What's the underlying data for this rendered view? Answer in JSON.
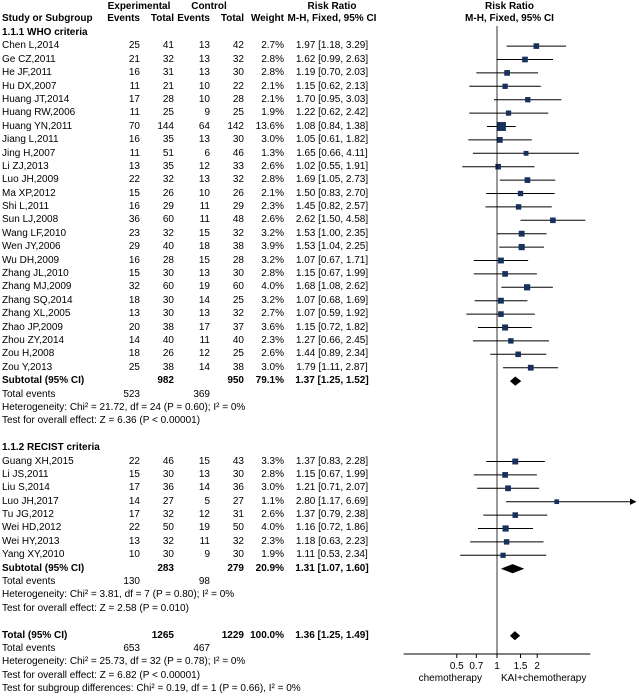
{
  "table": {
    "headers": {
      "study": "Study or Subgroup",
      "experimental": "Experimental",
      "control": "Control",
      "events": "Events",
      "total": "Total",
      "weight": "Weight",
      "risk_ratio": "Risk Ratio",
      "mh_fixed": "M-H, Fixed, 95% CI"
    }
  },
  "chart_data": {
    "type": "forest",
    "effect_measure": "Risk Ratio",
    "method": "M-H, Fixed, 95% CI",
    "axis": {
      "scale": "log",
      "ticks": [
        0.5,
        0.7,
        1,
        1.5,
        2
      ],
      "xmin": 0.2,
      "xmax": 5,
      "left_label": "chemotherapy",
      "right_label": "KAI+chemotherapy"
    },
    "colors": {
      "marker": "#16325c",
      "ci_line": "#000000",
      "diamond": "#000000",
      "axis": "#000000"
    },
    "rows": [
      {
        "t": "section",
        "label": "1.1.1 WHO criteria"
      },
      {
        "t": "study",
        "study": "Chen L,2014",
        "e_ev": "25",
        "e_n": "41",
        "c_ev": "13",
        "c_n": "42",
        "w": "2.7%",
        "ci": "1.97 [1.18, 3.29]",
        "rr": 1.97,
        "lo": 1.18,
        "hi": 3.29,
        "wt": 2.7
      },
      {
        "t": "study",
        "study": "Ge CZ,2011",
        "e_ev": "21",
        "e_n": "32",
        "c_ev": "13",
        "c_n": "32",
        "w": "2.8%",
        "ci": "1.62 [0.99, 2.63]",
        "rr": 1.62,
        "lo": 0.99,
        "hi": 2.63,
        "wt": 2.8
      },
      {
        "t": "study",
        "study": "He JF,2011",
        "e_ev": "16",
        "e_n": "31",
        "c_ev": "13",
        "c_n": "30",
        "w": "2.8%",
        "ci": "1.19 [0.70, 2.03]",
        "rr": 1.19,
        "lo": 0.7,
        "hi": 2.03,
        "wt": 2.8
      },
      {
        "t": "study",
        "study": "Hu DX,2007",
        "e_ev": "11",
        "e_n": "21",
        "c_ev": "10",
        "c_n": "22",
        "w": "2.1%",
        "ci": "1.15 [0.62, 2.13]",
        "rr": 1.15,
        "lo": 0.62,
        "hi": 2.13,
        "wt": 2.1
      },
      {
        "t": "study",
        "study": "Huang JT,2014",
        "e_ev": "17",
        "e_n": "28",
        "c_ev": "10",
        "c_n": "28",
        "w": "2.1%",
        "ci": "1.70 [0.95, 3.03]",
        "rr": 1.7,
        "lo": 0.95,
        "hi": 3.03,
        "wt": 2.1
      },
      {
        "t": "study",
        "study": "Huang RW,2006",
        "e_ev": "11",
        "e_n": "25",
        "c_ev": "9",
        "c_n": "25",
        "w": "1.9%",
        "ci": "1.22 [0.62, 2.42]",
        "rr": 1.22,
        "lo": 0.62,
        "hi": 2.42,
        "wt": 1.9
      },
      {
        "t": "study",
        "study": "Huang YN,2011",
        "e_ev": "70",
        "e_n": "144",
        "c_ev": "64",
        "c_n": "142",
        "w": "13.6%",
        "ci": "1.08 [0.84, 1.38]",
        "rr": 1.08,
        "lo": 0.84,
        "hi": 1.38,
        "wt": 13.6
      },
      {
        "t": "study",
        "study": "Jiang L,2011",
        "e_ev": "16",
        "e_n": "35",
        "c_ev": "13",
        "c_n": "30",
        "w": "3.0%",
        "ci": "1.05 [0.61, 1.82]",
        "rr": 1.05,
        "lo": 0.61,
        "hi": 1.82,
        "wt": 3.0
      },
      {
        "t": "study",
        "study": "Jing H,2007",
        "e_ev": "11",
        "e_n": "51",
        "c_ev": "6",
        "c_n": "46",
        "w": "1.3%",
        "ci": "1.65 [0.66, 4.11]",
        "rr": 1.65,
        "lo": 0.66,
        "hi": 4.11,
        "wt": 1.3
      },
      {
        "t": "study",
        "study": "Li ZJ,2013",
        "e_ev": "13",
        "e_n": "35",
        "c_ev": "12",
        "c_n": "33",
        "w": "2.6%",
        "ci": "1.02 [0.55, 1.91]",
        "rr": 1.02,
        "lo": 0.55,
        "hi": 1.91,
        "wt": 2.6
      },
      {
        "t": "study",
        "study": "Luo JH,2009",
        "e_ev": "22",
        "e_n": "32",
        "c_ev": "13",
        "c_n": "32",
        "w": "2.8%",
        "ci": "1.69 [1.05, 2.73]",
        "rr": 1.69,
        "lo": 1.05,
        "hi": 2.73,
        "wt": 2.8
      },
      {
        "t": "study",
        "study": "Ma XP,2012",
        "e_ev": "15",
        "e_n": "26",
        "c_ev": "10",
        "c_n": "26",
        "w": "2.1%",
        "ci": "1.50 [0.83, 2.70]",
        "rr": 1.5,
        "lo": 0.83,
        "hi": 2.7,
        "wt": 2.1
      },
      {
        "t": "study",
        "study": "Shi L,2011",
        "e_ev": "16",
        "e_n": "29",
        "c_ev": "11",
        "c_n": "29",
        "w": "2.3%",
        "ci": "1.45 [0.82, 2.57]",
        "rr": 1.45,
        "lo": 0.82,
        "hi": 2.57,
        "wt": 2.3
      },
      {
        "t": "study",
        "study": "Sun LJ,2008",
        "e_ev": "36",
        "e_n": "60",
        "c_ev": "11",
        "c_n": "48",
        "w": "2.6%",
        "ci": "2.62 [1.50, 4.58]",
        "rr": 2.62,
        "lo": 1.5,
        "hi": 4.58,
        "wt": 2.6
      },
      {
        "t": "study",
        "study": "Wang LF,2010",
        "e_ev": "23",
        "e_n": "32",
        "c_ev": "15",
        "c_n": "32",
        "w": "3.2%",
        "ci": "1.53 [1.00, 2.35]",
        "rr": 1.53,
        "lo": 1.0,
        "hi": 2.35,
        "wt": 3.2
      },
      {
        "t": "study",
        "study": "Wen JY,2006",
        "e_ev": "29",
        "e_n": "40",
        "c_ev": "18",
        "c_n": "38",
        "w": "3.9%",
        "ci": "1.53 [1.04, 2.25]",
        "rr": 1.53,
        "lo": 1.04,
        "hi": 2.25,
        "wt": 3.9
      },
      {
        "t": "study",
        "study": "Wu DH,2009",
        "e_ev": "16",
        "e_n": "28",
        "c_ev": "15",
        "c_n": "28",
        "w": "3.2%",
        "ci": "1.07 [0.67, 1.71]",
        "rr": 1.07,
        "lo": 0.67,
        "hi": 1.71,
        "wt": 3.2
      },
      {
        "t": "study",
        "study": "Zhang JL,2010",
        "e_ev": "15",
        "e_n": "30",
        "c_ev": "13",
        "c_n": "30",
        "w": "2.8%",
        "ci": "1.15 [0.67, 1.99]",
        "rr": 1.15,
        "lo": 0.67,
        "hi": 1.99,
        "wt": 2.8
      },
      {
        "t": "study",
        "study": "Zhang MJ,2009",
        "e_ev": "32",
        "e_n": "60",
        "c_ev": "19",
        "c_n": "60",
        "w": "4.0%",
        "ci": "1.68 [1.08, 2.62]",
        "rr": 1.68,
        "lo": 1.08,
        "hi": 2.62,
        "wt": 4.0
      },
      {
        "t": "study",
        "study": "Zhang SQ,2014",
        "e_ev": "18",
        "e_n": "30",
        "c_ev": "14",
        "c_n": "25",
        "w": "3.2%",
        "ci": "1.07 [0.68, 1.69]",
        "rr": 1.07,
        "lo": 0.68,
        "hi": 1.69,
        "wt": 3.2
      },
      {
        "t": "study",
        "study": "Zhang XL,2005",
        "e_ev": "13",
        "e_n": "30",
        "c_ev": "13",
        "c_n": "32",
        "w": "2.7%",
        "ci": "1.07 [0.59, 1.92]",
        "rr": 1.07,
        "lo": 0.59,
        "hi": 1.92,
        "wt": 2.7
      },
      {
        "t": "study",
        "study": "Zhao JP,2009",
        "e_ev": "20",
        "e_n": "38",
        "c_ev": "17",
        "c_n": "37",
        "w": "3.6%",
        "ci": "1.15 [0.72, 1.82]",
        "rr": 1.15,
        "lo": 0.72,
        "hi": 1.82,
        "wt": 3.6
      },
      {
        "t": "study",
        "study": "Zhou ZY,2014",
        "e_ev": "14",
        "e_n": "40",
        "c_ev": "11",
        "c_n": "40",
        "w": "2.3%",
        "ci": "1.27 [0.66, 2.45]",
        "rr": 1.27,
        "lo": 0.66,
        "hi": 2.45,
        "wt": 2.3
      },
      {
        "t": "study",
        "study": "Zou H,2008",
        "e_ev": "18",
        "e_n": "26",
        "c_ev": "12",
        "c_n": "25",
        "w": "2.6%",
        "ci": "1.44 [0.89, 2.34]",
        "rr": 1.44,
        "lo": 0.89,
        "hi": 2.34,
        "wt": 2.6
      },
      {
        "t": "study",
        "study": "Zou Y,2013",
        "e_ev": "25",
        "e_n": "38",
        "c_ev": "14",
        "c_n": "38",
        "w": "3.0%",
        "ci": "1.79 [1.11, 2.87]",
        "rr": 1.79,
        "lo": 1.11,
        "hi": 2.87,
        "wt": 3.0
      },
      {
        "t": "subtotal",
        "study": "Subtotal (95% CI)",
        "e_n": "982",
        "c_n": "950",
        "w": "79.1%",
        "ci": "1.37 [1.25, 1.52]",
        "rr": 1.37,
        "lo": 1.25,
        "hi": 1.52
      },
      {
        "t": "events",
        "study": "Total events",
        "e_ev": "523",
        "c_ev": "369"
      },
      {
        "t": "note",
        "label": "Heterogeneity: Chi² = 21.72, df = 24 (P = 0.60); I² = 0%"
      },
      {
        "t": "note",
        "label": "Test for overall effect: Z = 6.36 (P < 0.00001)"
      },
      {
        "t": "blank"
      },
      {
        "t": "section",
        "label": "1.1.2 RECIST criteria"
      },
      {
        "t": "study",
        "study": "Guang XH,2015",
        "e_ev": "22",
        "e_n": "46",
        "c_ev": "15",
        "c_n": "43",
        "w": "3.3%",
        "ci": "1.37 [0.83, 2.28]",
        "rr": 1.37,
        "lo": 0.83,
        "hi": 2.28,
        "wt": 3.3
      },
      {
        "t": "study",
        "study": "Li JS,2011",
        "e_ev": "15",
        "e_n": "30",
        "c_ev": "13",
        "c_n": "30",
        "w": "2.8%",
        "ci": "1.15 [0.67, 1.99]",
        "rr": 1.15,
        "lo": 0.67,
        "hi": 1.99,
        "wt": 2.8
      },
      {
        "t": "study",
        "study": "Liu S,2014",
        "e_ev": "17",
        "e_n": "36",
        "c_ev": "14",
        "c_n": "36",
        "w": "3.0%",
        "ci": "1.21 [0.71, 2.07]",
        "rr": 1.21,
        "lo": 0.71,
        "hi": 2.07,
        "wt": 3.0
      },
      {
        "t": "study",
        "study": "Luo JH,2017",
        "e_ev": "14",
        "e_n": "27",
        "c_ev": "5",
        "c_n": "27",
        "w": "1.1%",
        "ci": "2.80 [1.17, 6.69]",
        "rr": 2.8,
        "lo": 1.17,
        "hi": 6.69,
        "wt": 1.1
      },
      {
        "t": "study",
        "study": "Tu JG,2012",
        "e_ev": "17",
        "e_n": "32",
        "c_ev": "12",
        "c_n": "31",
        "w": "2.6%",
        "ci": "1.37 [0.79, 2.38]",
        "rr": 1.37,
        "lo": 0.79,
        "hi": 2.38,
        "wt": 2.6
      },
      {
        "t": "study",
        "study": "Wei HD,2012",
        "e_ev": "22",
        "e_n": "50",
        "c_ev": "19",
        "c_n": "50",
        "w": "4.0%",
        "ci": "1.16 [0.72, 1.86]",
        "rr": 1.16,
        "lo": 0.72,
        "hi": 1.86,
        "wt": 4.0
      },
      {
        "t": "study",
        "study": "Wei HY,2013",
        "e_ev": "13",
        "e_n": "32",
        "c_ev": "11",
        "c_n": "32",
        "w": "2.3%",
        "ci": "1.18 [0.63, 2.23]",
        "rr": 1.18,
        "lo": 0.63,
        "hi": 2.23,
        "wt": 2.3
      },
      {
        "t": "study",
        "study": "Yang XY,2010",
        "e_ev": "10",
        "e_n": "30",
        "c_ev": "9",
        "c_n": "30",
        "w": "1.9%",
        "ci": "1.11 [0.53, 2.34]",
        "rr": 1.11,
        "lo": 0.53,
        "hi": 2.34,
        "wt": 1.9
      },
      {
        "t": "subtotal",
        "study": "Subtotal (95% CI)",
        "e_n": "283",
        "c_n": "279",
        "w": "20.9%",
        "ci": "1.31 [1.07, 1.60]",
        "rr": 1.31,
        "lo": 1.07,
        "hi": 1.6
      },
      {
        "t": "events",
        "study": "Total events",
        "e_ev": "130",
        "c_ev": "98"
      },
      {
        "t": "note",
        "label": "Heterogeneity: Chi² = 3.81, df = 7 (P = 0.80); I² = 0%"
      },
      {
        "t": "note",
        "label": "Test for overall effect: Z = 2.58 (P = 0.010)"
      },
      {
        "t": "blank"
      },
      {
        "t": "total",
        "study": "Total (95% CI)",
        "e_n": "1265",
        "c_n": "1229",
        "w": "100.0%",
        "ci": "1.36 [1.25, 1.49]",
        "rr": 1.36,
        "lo": 1.25,
        "hi": 1.49
      },
      {
        "t": "events",
        "study": "Total events",
        "e_ev": "653",
        "c_ev": "467"
      },
      {
        "t": "note",
        "label": "Heterogeneity: Chi² = 25.73, df = 32 (P = 0.78); I² = 0%"
      },
      {
        "t": "note",
        "label": "Test for overall effect: Z = 6.82 (P < 0.00001)"
      },
      {
        "t": "note",
        "label": "Test for subgroup differences: Chi² = 0.19, df = 1 (P = 0.66), I² = 0%"
      }
    ]
  }
}
